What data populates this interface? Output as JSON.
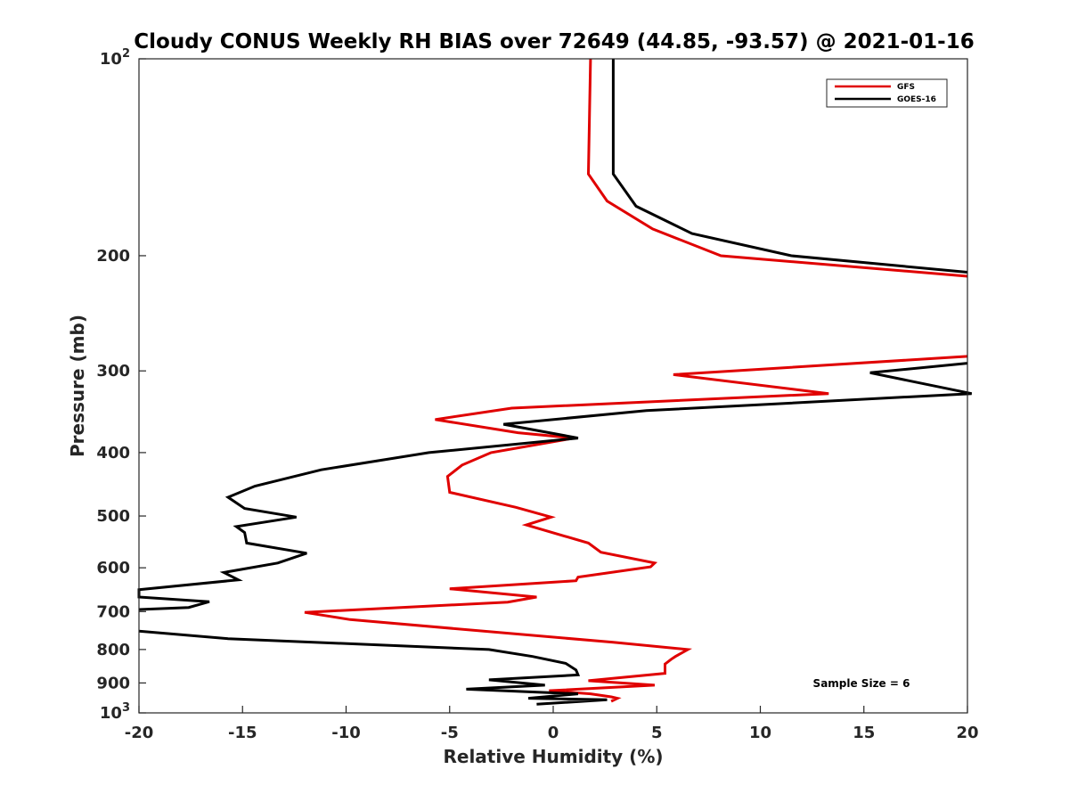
{
  "chart_data": {
    "type": "line",
    "title": "Cloudy CONUS Weekly RH BIAS over 72649 (44.85, -93.57) @ 2021-01-16",
    "xlabel": "Relative Humidity (%)",
    "ylabel": "Pressure (mb)",
    "xlim": [
      -20,
      20
    ],
    "ylim": [
      100,
      1000
    ],
    "y_scale": "log",
    "y_reversed": true,
    "grid": false,
    "legend_position": "top-right",
    "x_ticks": [
      "-20",
      "-15",
      "-10",
      "-5",
      "0",
      "5",
      "10",
      "15",
      "20"
    ],
    "y_ticks": [
      {
        "value": 100,
        "base": "10",
        "exp": "2"
      },
      {
        "value": 200,
        "label": "200"
      },
      {
        "value": 300,
        "label": "300"
      },
      {
        "value": 400,
        "label": "400"
      },
      {
        "value": 500,
        "label": "500"
      },
      {
        "value": 600,
        "label": "600"
      },
      {
        "value": 700,
        "label": "700"
      },
      {
        "value": 800,
        "label": "800"
      },
      {
        "value": 900,
        "label": "900"
      },
      {
        "value": 1000,
        "base": "10",
        "exp": "3"
      }
    ],
    "annotation": "Sample Size = 6",
    "series": [
      {
        "name": "GFS",
        "color": "#e00000",
        "points": [
          [
            1.8,
            100
          ],
          [
            1.7,
            150
          ],
          [
            2.6,
            165
          ],
          [
            4.8,
            182
          ],
          [
            8.1,
            200
          ],
          [
            20,
            215
          ],
          null,
          [
            20,
            285
          ],
          [
            5.8,
            304
          ],
          [
            13.3,
            325
          ],
          [
            -2.0,
            342
          ],
          [
            -5.7,
            356
          ],
          [
            -1.7,
            373
          ],
          [
            1.0,
            380
          ],
          [
            -3.0,
            400
          ],
          [
            -4.4,
            418
          ],
          [
            -5.1,
            435
          ],
          [
            -5.0,
            460
          ],
          [
            -1.8,
            485
          ],
          [
            -0.1,
            502
          ],
          [
            -1.3,
            516
          ],
          [
            1.7,
            550
          ],
          [
            2.3,
            568
          ],
          [
            4.9,
            590
          ],
          [
            4.7,
            598
          ],
          [
            1.2,
            620
          ],
          [
            1.1,
            628
          ],
          [
            -5.0,
            646
          ],
          [
            -0.8,
            665
          ],
          [
            -2.2,
            677
          ],
          [
            -12.0,
            702
          ],
          [
            -9.8,
            720
          ],
          [
            2.9,
            780
          ],
          [
            6.5,
            800
          ],
          [
            5.9,
            820
          ],
          [
            5.7,
            828
          ],
          [
            5.4,
            842
          ],
          [
            5.4,
            870
          ],
          [
            1.7,
            893
          ],
          [
            4.9,
            907
          ],
          [
            -0.2,
            925
          ],
          [
            1.8,
            935
          ],
          [
            2.8,
            945
          ],
          [
            3.1,
            950
          ],
          [
            2.8,
            960
          ]
        ]
      },
      {
        "name": "GOES-16",
        "color": "#000000",
        "points": [
          [
            2.9,
            100
          ],
          [
            2.9,
            150
          ],
          [
            4.0,
            168
          ],
          [
            6.7,
            185
          ],
          [
            11.5,
            200
          ],
          [
            20,
            212
          ],
          null,
          [
            20,
            292
          ],
          [
            15.3,
            302
          ],
          [
            20.2,
            325
          ],
          [
            4.5,
            345
          ],
          [
            -2.4,
            362
          ],
          [
            1.2,
            380
          ],
          [
            -6.0,
            400
          ],
          [
            -11.2,
            425
          ],
          [
            -14.4,
            450
          ],
          [
            -15.7,
            468
          ],
          [
            -14.9,
            487
          ],
          [
            -12.4,
            502
          ],
          [
            -15.3,
            519
          ],
          [
            -14.9,
            530
          ],
          [
            -14.8,
            550
          ],
          [
            -11.9,
            570
          ],
          [
            -13.3,
            590
          ],
          [
            -15.9,
            610
          ],
          [
            -15.2,
            626
          ],
          [
            -20,
            648
          ],
          [
            -20,
            665
          ],
          [
            -16.6,
            676
          ],
          [
            -17.6,
            690
          ],
          [
            -20,
            695
          ],
          null,
          [
            -20,
            750
          ],
          [
            -15.7,
            770
          ],
          [
            -3.1,
            800
          ],
          [
            -1.0,
            820
          ],
          [
            0.6,
            840
          ],
          [
            1.1,
            860
          ],
          [
            1.2,
            875
          ],
          [
            -3.1,
            890
          ],
          [
            -0.4,
            907
          ],
          [
            -4.2,
            920
          ],
          [
            1.2,
            935
          ],
          [
            -1.2,
            950
          ],
          [
            2.6,
            955
          ],
          [
            -0.8,
            970
          ]
        ]
      }
    ]
  }
}
